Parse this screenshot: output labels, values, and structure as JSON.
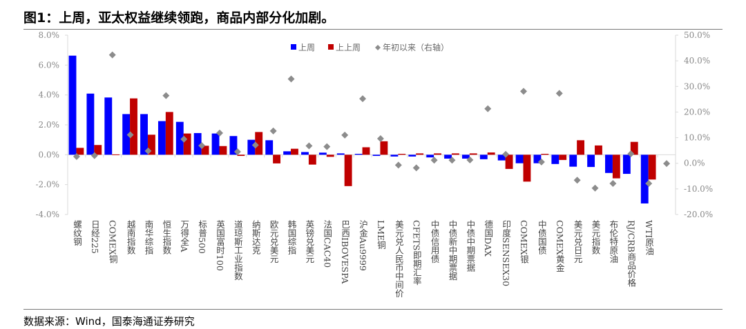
{
  "title": "图1：上周，亚太权益继续领跑，商品内部分化加剧。",
  "source": "数据来源：Wind，国泰海通证券研究",
  "colors": {
    "last_week": "#0000ff",
    "prev_week": "#c00000",
    "ytd": "#8c8c8c"
  },
  "chart_data": {
    "type": "bar",
    "title": "图1：上周，亚太权益继续领跑，商品内部分化加剧。",
    "categories": [
      "螺纹钢",
      "日经225",
      "COMEX铜",
      "越南指数",
      "南华综指",
      "恒生指数",
      "万得全A",
      "标普500",
      "英国富时100",
      "道琼斯工业指数",
      "纳斯达克",
      "欧元兑美元",
      "韩国综指",
      "英镑兑美元",
      "法国CAC40",
      "巴西IBOVESPA",
      "沪金Au9999",
      "LME铜",
      "美元兑人民币中间价",
      "CFETS即期汇率",
      "中债信用债",
      "中债新中期票据",
      "中债中期票据",
      "德国DAX",
      "印度SENSEX30",
      "COMEX银",
      "中债国债",
      "COMEX黄金",
      "美元兑日元",
      "美元指数",
      "布伦特原油",
      "RJ/CRB商品价格",
      "WTI原油",
      ""
    ],
    "series": [
      {
        "name": "上周",
        "type": "bar",
        "axis": "left",
        "values": [
          6.63,
          4.09,
          3.83,
          2.72,
          2.72,
          2.25,
          2.2,
          1.45,
          1.42,
          1.25,
          1.0,
          0.97,
          0.23,
          0.18,
          0.14,
          0.09,
          0.06,
          -0.08,
          -0.12,
          -0.12,
          -0.18,
          -0.26,
          -0.26,
          -0.3,
          -0.38,
          -0.57,
          -0.57,
          -0.62,
          -0.8,
          -0.82,
          -1.22,
          -1.28,
          -3.26,
          null
        ]
      },
      {
        "name": "上上周",
        "type": "bar",
        "axis": "left",
        "values": [
          0.46,
          0.65,
          0.02,
          3.77,
          1.34,
          2.86,
          1.42,
          0.6,
          0.58,
          -0.08,
          1.52,
          -0.58,
          0.4,
          -0.66,
          -0.14,
          -2.1,
          0.5,
          0.9,
          0.06,
          0.09,
          0.09,
          0.09,
          0.09,
          0.15,
          -0.95,
          -1.8,
          0.06,
          -0.35,
          0.97,
          0.62,
          -1.58,
          0.86,
          -1.66,
          null
        ]
      },
      {
        "name": "年初以来（右轴）",
        "type": "scatter",
        "axis": "right",
        "values": [
          2.6,
          3.0,
          42.3,
          11.1,
          4.8,
          26.4,
          9.4,
          6.9,
          11.8,
          4.5,
          7.1,
          12.6,
          32.9,
          6.8,
          6.5,
          11.0,
          25.2,
          9.6,
          -0.7,
          -1.8,
          1.2,
          1.2,
          1.3,
          21.3,
          3.5,
          28.1,
          0.5,
          27.3,
          -6.6,
          -9.7,
          -7.9,
          3.7,
          -7.9,
          -0.1
        ]
      }
    ],
    "ylim": [
      -4,
      8
    ],
    "yticks": [
      "8.0%",
      "6.0%",
      "4.0%",
      "2.0%",
      "0.0%",
      "-2.0%",
      "-4.0%"
    ],
    "y2lim": [
      -20,
      50
    ],
    "y2ticks": [
      "50.0%",
      "40.0%",
      "30.0%",
      "20.0%",
      "10.0%",
      "0.0%",
      "-10.0%",
      "-20.0%"
    ],
    "legend": {
      "position": "top-center",
      "items": [
        "上周",
        "上上周",
        "年初以来（右轴）"
      ]
    }
  }
}
